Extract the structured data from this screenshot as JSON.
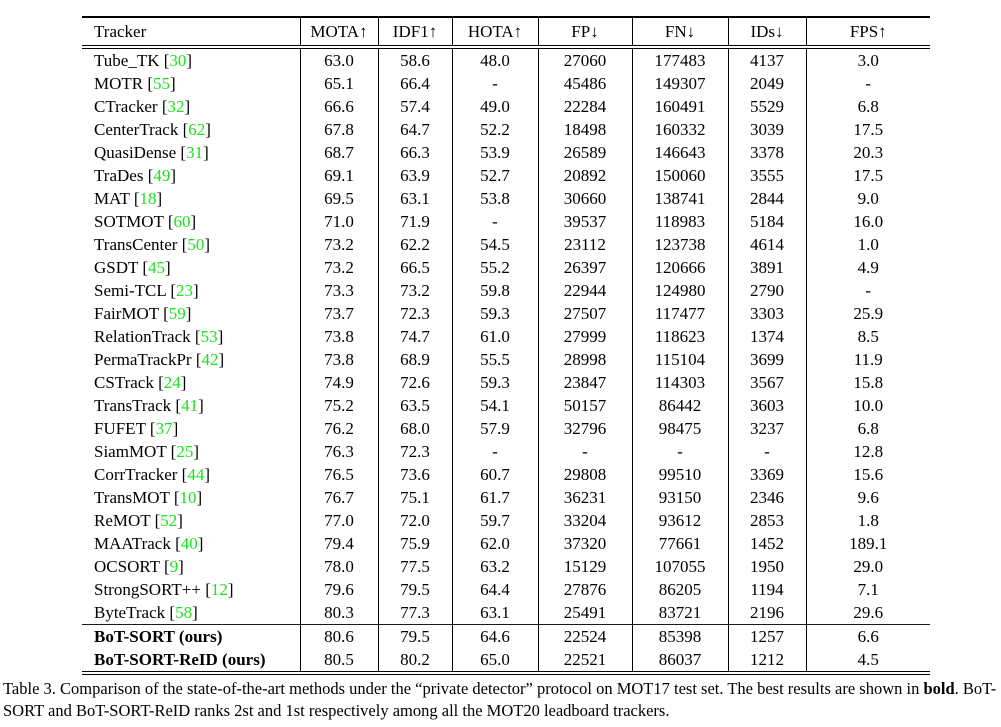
{
  "table": {
    "columns": [
      {
        "label": "Tracker"
      },
      {
        "label": "MOTA↑"
      },
      {
        "label": "IDF1↑"
      },
      {
        "label": "HOTA↑"
      },
      {
        "label": "FP↓"
      },
      {
        "label": "FN↓"
      },
      {
        "label": "IDs↓"
      },
      {
        "label": "FPS↑"
      }
    ],
    "rows": [
      {
        "tracker": "Tube_TK",
        "ref": "30",
        "values": [
          "63.0",
          "58.6",
          "48.0",
          "27060",
          "177483",
          "4137",
          "3.0"
        ]
      },
      {
        "tracker": "MOTR",
        "ref": "55",
        "values": [
          "65.1",
          "66.4",
          "-",
          "45486",
          "149307",
          "2049",
          "-"
        ]
      },
      {
        "tracker": "CTracker",
        "ref": "32",
        "values": [
          "66.6",
          "57.4",
          "49.0",
          "22284",
          "160491",
          "5529",
          "6.8"
        ]
      },
      {
        "tracker": "CenterTrack",
        "ref": "62",
        "values": [
          "67.8",
          "64.7",
          "52.2",
          "18498",
          "160332",
          "3039",
          "17.5"
        ]
      },
      {
        "tracker": "QuasiDense",
        "ref": "31",
        "values": [
          "68.7",
          "66.3",
          "53.9",
          "26589",
          "146643",
          "3378",
          "20.3"
        ]
      },
      {
        "tracker": "TraDes",
        "ref": "49",
        "values": [
          "69.1",
          "63.9",
          "52.7",
          "20892",
          "150060",
          "3555",
          "17.5"
        ]
      },
      {
        "tracker": "MAT",
        "ref": "18",
        "values": [
          "69.5",
          "63.1",
          "53.8",
          "30660",
          "138741",
          "2844",
          "9.0"
        ]
      },
      {
        "tracker": "SOTMOT",
        "ref": "60",
        "values": [
          "71.0",
          "71.9",
          "-",
          "39537",
          "118983",
          "5184",
          "16.0"
        ]
      },
      {
        "tracker": "TransCenter",
        "ref": "50",
        "values": [
          "73.2",
          "62.2",
          "54.5",
          "23112",
          "123738",
          "4614",
          "1.0"
        ]
      },
      {
        "tracker": "GSDT",
        "ref": "45",
        "values": [
          "73.2",
          "66.5",
          "55.2",
          "26397",
          "120666",
          "3891",
          "4.9"
        ]
      },
      {
        "tracker": "Semi-TCL",
        "ref": "23",
        "values": [
          "73.3",
          "73.2",
          "59.8",
          "22944",
          "124980",
          "2790",
          "-"
        ]
      },
      {
        "tracker": "FairMOT",
        "ref": "59",
        "values": [
          "73.7",
          "72.3",
          "59.3",
          "27507",
          "117477",
          "3303",
          "25.9"
        ]
      },
      {
        "tracker": "RelationTrack",
        "ref": "53",
        "values": [
          "73.8",
          "74.7",
          "61.0",
          "27999",
          "118623",
          "1374",
          "8.5"
        ]
      },
      {
        "tracker": "PermaTrackPr",
        "ref": "42",
        "values": [
          "73.8",
          "68.9",
          "55.5",
          "28998",
          "115104",
          "3699",
          "11.9"
        ]
      },
      {
        "tracker": "CSTrack",
        "ref": "24",
        "values": [
          "74.9",
          "72.6",
          "59.3",
          "23847",
          "114303",
          "3567",
          "15.8"
        ]
      },
      {
        "tracker": "TransTrack",
        "ref": "41",
        "values": [
          "75.2",
          "63.5",
          "54.1",
          "50157",
          "86442",
          "3603",
          "10.0"
        ]
      },
      {
        "tracker": "FUFET",
        "ref": "37",
        "values": [
          "76.2",
          "68.0",
          "57.9",
          "32796",
          "98475",
          "3237",
          "6.8"
        ]
      },
      {
        "tracker": "SiamMOT",
        "ref": "25",
        "values": [
          "76.3",
          "72.3",
          "-",
          "-",
          "-",
          "-",
          "12.8"
        ]
      },
      {
        "tracker": "CorrTracker",
        "ref": "44",
        "values": [
          "76.5",
          "73.6",
          "60.7",
          "29808",
          "99510",
          "3369",
          "15.6"
        ]
      },
      {
        "tracker": "TransMOT",
        "ref": "10",
        "values": [
          "76.7",
          "75.1",
          "61.7",
          "36231",
          "93150",
          "2346",
          "9.6"
        ]
      },
      {
        "tracker": "ReMOT",
        "ref": "52",
        "values": [
          "77.0",
          "72.0",
          "59.7",
          "33204",
          "93612",
          "2853",
          "1.8"
        ]
      },
      {
        "tracker": "MAATrack",
        "ref": "40",
        "values": [
          "79.4",
          "75.9",
          "62.0",
          "37320",
          "77661",
          "1452",
          "189.1"
        ],
        "bold_value_indices": [
          6
        ]
      },
      {
        "tracker": "OCSORT",
        "ref": "9",
        "values": [
          "78.0",
          "77.5",
          "63.2",
          "15129",
          "107055",
          "1950",
          "29.0"
        ],
        "bold_value_indices": [
          3
        ]
      },
      {
        "tracker": "StrongSORT++",
        "ref": "12",
        "values": [
          "79.6",
          "79.5",
          "64.4",
          "27876",
          "86205",
          "1194",
          "7.1"
        ],
        "bold_value_indices": [
          5
        ]
      },
      {
        "tracker": "ByteTrack",
        "ref": "58",
        "values": [
          "80.3",
          "77.3",
          "63.1",
          "25491",
          "83721",
          "2196",
          "29.6"
        ],
        "bold_value_indices": [
          4
        ]
      },
      {
        "tracker": "BoT-SORT (ours)",
        "bold_name": true,
        "separator_above": true,
        "values": [
          "80.6",
          "79.5",
          "64.6",
          "22524",
          "85398",
          "1257",
          "6.6"
        ],
        "bold_value_indices": [
          0
        ]
      },
      {
        "tracker": "BoT-SORT-ReID (ours)",
        "bold_name": true,
        "values": [
          "80.5",
          "80.2",
          "65.0",
          "22521",
          "86037",
          "1212",
          "4.5"
        ],
        "bold_value_indices": [
          1,
          2
        ]
      }
    ]
  },
  "caption": {
    "parts": [
      {
        "text": "Table 3. Comparison of the state-of-the-art methods under the “private detector” protocol on MOT17 test set. The best results are shown in ",
        "bold": false
      },
      {
        "text": "bold",
        "bold": true
      },
      {
        "text": ". BoT-SORT and BoT-SORT-ReID ranks 2st and 1st respectively among all the MOT20 leadboard trackers.",
        "bold": false
      }
    ]
  },
  "colors": {
    "citation_green": "#1ae41a",
    "text": "#000000",
    "background": "#ffffff"
  }
}
